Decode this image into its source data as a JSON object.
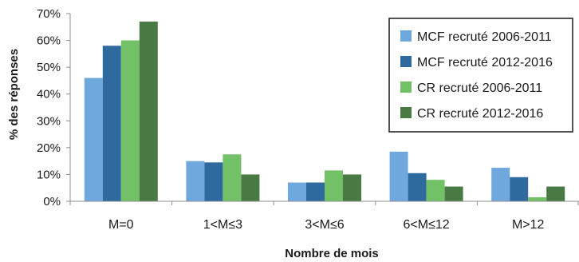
{
  "chart_data": {
    "type": "bar",
    "title": "",
    "xlabel": "Nombre de mois",
    "ylabel": "% des réponses",
    "ylim": [
      0,
      70
    ],
    "yticks": [
      0,
      10,
      20,
      30,
      40,
      50,
      60,
      70
    ],
    "ytick_labels": [
      "0%",
      "10%",
      "20%",
      "30%",
      "40%",
      "50%",
      "60%",
      "70%"
    ],
    "categories": [
      "M=0",
      "1<M≤3",
      "3<M≤6",
      "6<M≤12",
      "M>12"
    ],
    "series": [
      {
        "name": "MCF recruté 2006-2011",
        "color": "#6fa8dc",
        "values": [
          46,
          15,
          7,
          18.5,
          12.5
        ]
      },
      {
        "name": "MCF recruté 2012-2016",
        "color": "#2e6a9e",
        "values": [
          58,
          14.5,
          7,
          10.5,
          9
        ]
      },
      {
        "name": "CR recruté 2006-2011",
        "color": "#73c166",
        "values": [
          60,
          17.5,
          11.5,
          8,
          1.5
        ]
      },
      {
        "name": "CR recruté 2012-2016",
        "color": "#4a7a43",
        "values": [
          67,
          10,
          10,
          5.5,
          5.5
        ]
      }
    ],
    "grid": false,
    "legend_position": "top-right"
  }
}
